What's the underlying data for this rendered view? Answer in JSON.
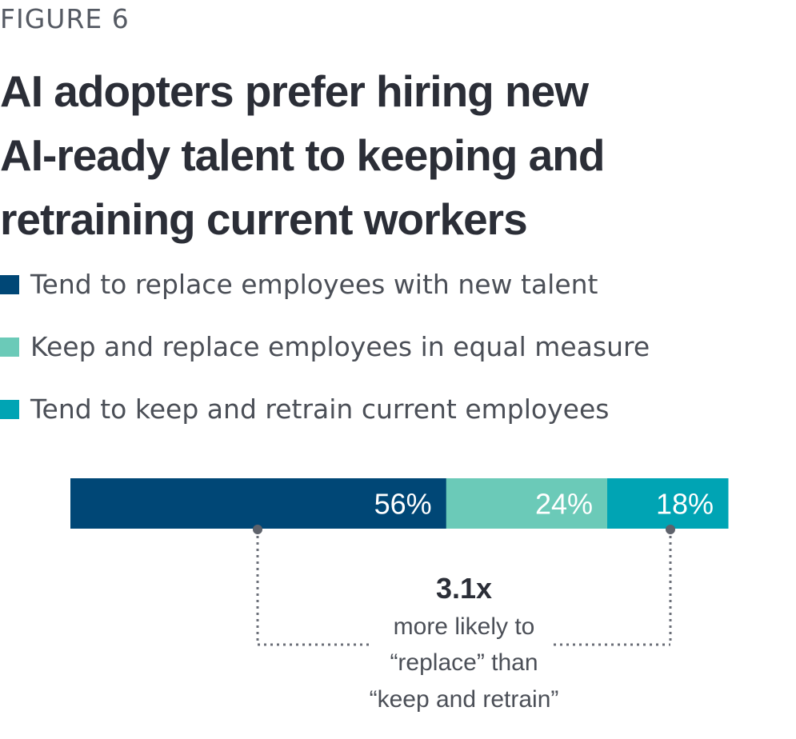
{
  "figure_label": "FIGURE 6",
  "title_lines": [
    "AI adopters prefer hiring new",
    "AI-ready talent to keeping and",
    "retraining current workers"
  ],
  "legend": [
    {
      "label": "Tend to replace employees with new talent",
      "color": "#004776"
    },
    {
      "label": "Keep and replace employees in equal measure",
      "color": "#6bcab8"
    },
    {
      "label": "Tend to keep and retrain current employees",
      "color": "#00a4b4"
    }
  ],
  "chart_data": {
    "type": "bar",
    "orientation": "horizontal-stacked",
    "categories": [
      "Tend to replace employees with new talent",
      "Keep and replace employees in equal measure",
      "Tend to keep and retrain current employees"
    ],
    "values": [
      56,
      24,
      18
    ],
    "data_labels": [
      "56%",
      "24%",
      "18%"
    ],
    "colors": [
      "#004776",
      "#6bcab8",
      "#00a4b4"
    ],
    "title": "AI adopters prefer hiring new AI-ready talent to keeping and retraining current workers",
    "annotation": {
      "value": "3.1x",
      "lines": [
        "more likely to",
        "“replace” than",
        "“keep and retrain”"
      ]
    }
  }
}
